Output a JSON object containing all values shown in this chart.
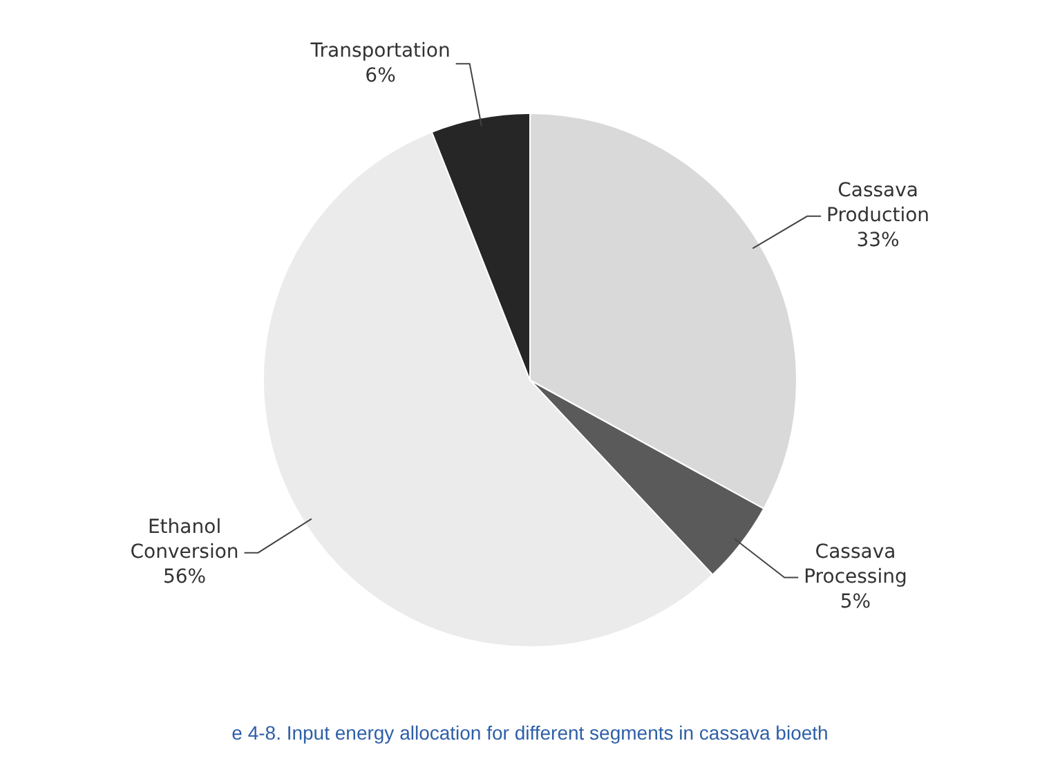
{
  "chart_data": {
    "type": "pie",
    "categories": [
      "Cassava Production",
      "Cassava Processing",
      "Ethanol Conversion",
      "Transportation"
    ],
    "values": [
      33,
      5,
      56,
      6
    ],
    "value_labels": [
      "33%",
      "5%",
      "56%",
      "6%"
    ],
    "colors": [
      "#d9d9d9",
      "#5a5a5a",
      "#ebebeb",
      "#262626"
    ],
    "annotations": [
      "e 4-8. Input energy allocation for different segments in cassava bioeth"
    ]
  }
}
